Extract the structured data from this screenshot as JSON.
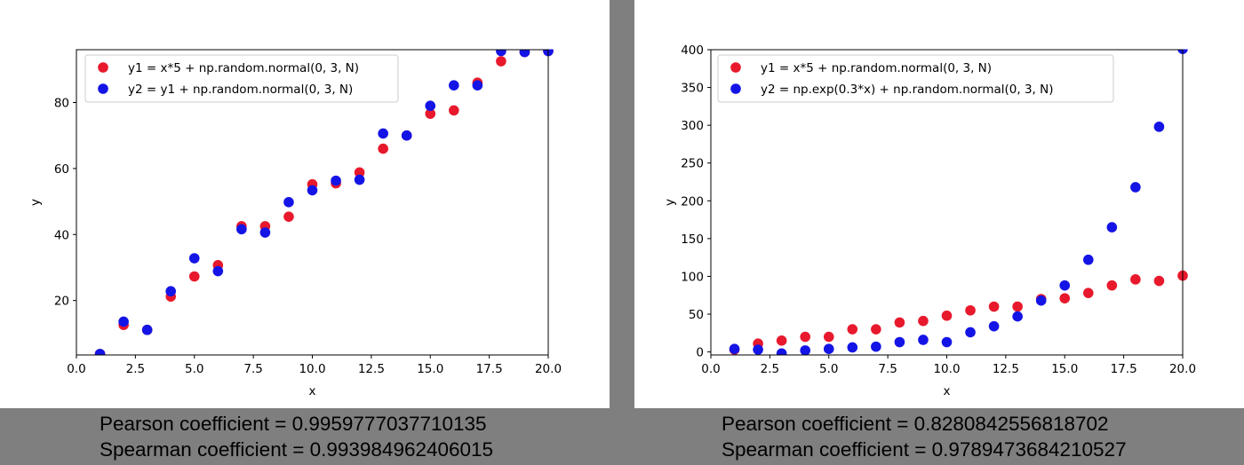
{
  "colors": {
    "series1": "#e8192c",
    "series2": "#1414e6",
    "background": "#7f7f7f",
    "panel": "#ffffff"
  },
  "chart_data": [
    {
      "type": "scatter",
      "xlabel": "x",
      "ylabel": "y",
      "xlim": [
        0,
        20
      ],
      "ylim": [
        3.5,
        96
      ],
      "xticks": [
        "0.0",
        "2.5",
        "5.0",
        "7.5",
        "10.0",
        "12.5",
        "15.0",
        "17.5",
        "20.0"
      ],
      "yticks": [
        "20",
        "40",
        "60",
        "80"
      ],
      "grid": false,
      "legend_position": "upper-left",
      "series": [
        {
          "name": "y1 = x*5 + np.random.normal(0, 3, N)",
          "x": [
            1,
            2,
            3,
            4,
            5,
            6,
            7,
            8,
            9,
            10,
            11,
            12,
            13,
            14,
            15,
            16,
            17,
            18,
            19,
            20
          ],
          "y": [
            3.8,
            12.6,
            11.1,
            21.2,
            27.3,
            30.7,
            42.5,
            42.5,
            45.4,
            55.2,
            55.5,
            58.8,
            66.0,
            70.0,
            76.6,
            77.6,
            86.0,
            92.5,
            95.3,
            95.6
          ]
        },
        {
          "name": "y2 = y1 + np.random.normal(0, 3, N)",
          "x": [
            1,
            2,
            3,
            4,
            5,
            6,
            7,
            8,
            9,
            10,
            11,
            12,
            13,
            14,
            15,
            16,
            17,
            18,
            19,
            20
          ],
          "y": [
            3.8,
            13.6,
            11.1,
            22.8,
            32.8,
            28.9,
            41.6,
            40.6,
            49.8,
            53.4,
            56.3,
            56.6,
            70.6,
            70.0,
            79.0,
            85.2,
            85.2,
            95.6,
            95.3,
            95.6
          ]
        }
      ],
      "pearson_label": "Pearson coefficient = 0.9959777037710135",
      "spearman_label": "Spearman coefficient = 0.993984962406015"
    },
    {
      "type": "scatter",
      "xlabel": "x",
      "ylabel": "y",
      "xlim": [
        0,
        20
      ],
      "ylim": [
        -4,
        400
      ],
      "xticks": [
        "0.0",
        "2.5",
        "5.0",
        "7.5",
        "10.0",
        "12.5",
        "15.0",
        "17.5",
        "20.0"
      ],
      "yticks": [
        "0",
        "50",
        "100",
        "150",
        "200",
        "250",
        "300",
        "350",
        "400"
      ],
      "grid": false,
      "legend_position": "upper-left",
      "series": [
        {
          "name": "y1 = x*5 + np.random.normal(0, 3, N)",
          "x": [
            1,
            2,
            3,
            4,
            5,
            6,
            7,
            8,
            9,
            10,
            11,
            12,
            13,
            14,
            15,
            16,
            17,
            18,
            19,
            20
          ],
          "y": [
            3,
            11,
            15,
            20,
            20,
            30,
            30,
            39,
            41,
            48,
            55,
            60,
            60,
            70,
            71,
            78,
            88,
            96,
            94,
            101
          ]
        },
        {
          "name": "y2 = np.exp(0.3*x) + np.random.normal(0, 3, N)",
          "x": [
            1,
            2,
            3,
            4,
            5,
            6,
            7,
            8,
            9,
            10,
            11,
            12,
            13,
            14,
            15,
            16,
            17,
            18,
            19,
            20
          ],
          "y": [
            4,
            3,
            -2,
            2,
            4,
            6,
            7,
            13,
            16,
            13,
            26,
            34,
            47,
            68,
            88,
            122,
            165,
            218,
            298,
            401
          ]
        }
      ],
      "pearson_label": "Pearson coefficient = 0.8280842556818702",
      "spearman_label": "Spearman coefficient = 0.9789473684210527"
    }
  ]
}
